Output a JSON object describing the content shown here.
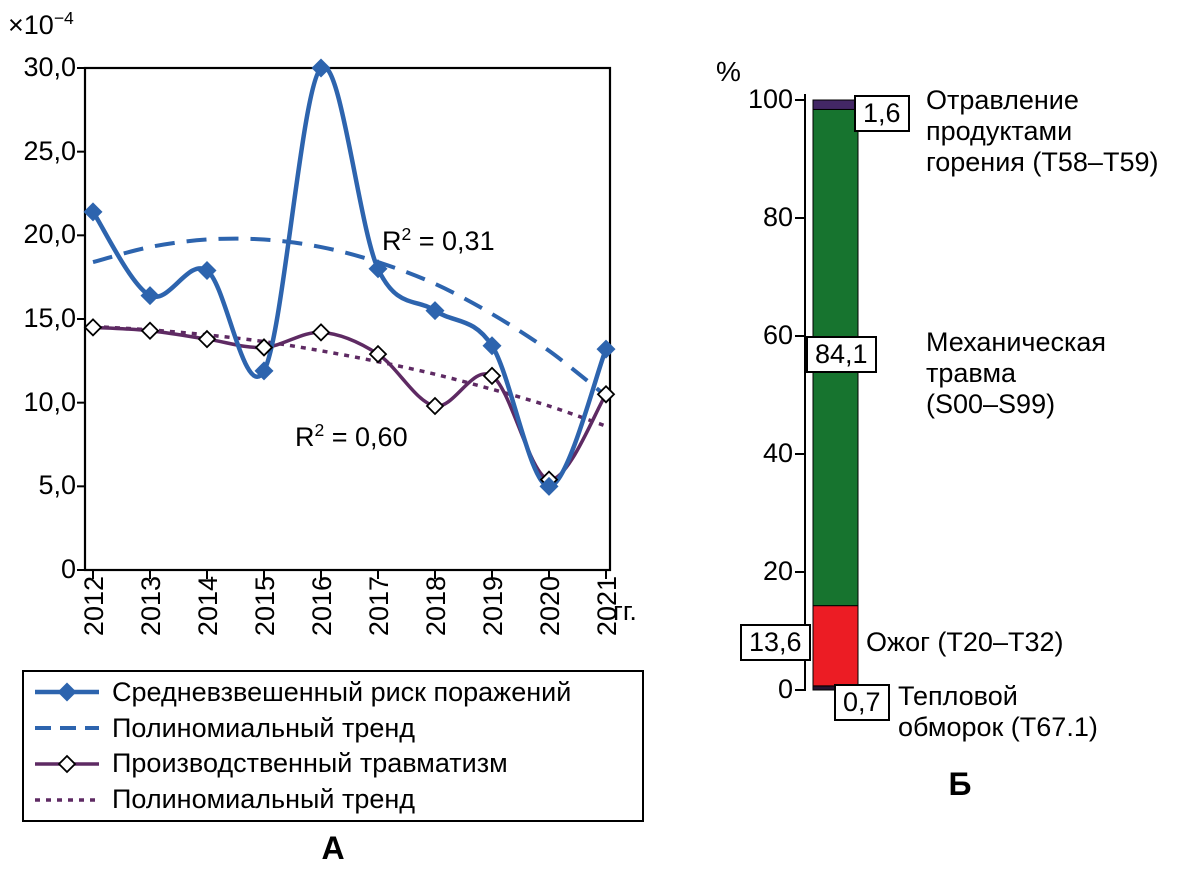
{
  "figure": {
    "panel_a_label": "А",
    "panel_b_label": "Б"
  },
  "chart_data": [
    {
      "id": "panel-a",
      "type": "line",
      "xlabel": "гг.",
      "y_scale": {
        "base": "×10",
        "sup": "−4"
      },
      "ylim": [
        0,
        30
      ],
      "yticks": [
        "0",
        "5,0",
        "10,0",
        "15,0",
        "20,0",
        "25,0",
        "30,0"
      ],
      "ytick_values": [
        0,
        5,
        10,
        15,
        20,
        25,
        30
      ],
      "x_categories": [
        "2012",
        "2013",
        "2014",
        "2015",
        "2016",
        "2017",
        "2018",
        "2019",
        "2020",
        "2021"
      ],
      "grid": false,
      "legend_position": "bottom",
      "series": [
        {
          "name": "Средневзвешенный риск поражений",
          "type": "line-markers",
          "marker": "diamond-filled",
          "color": "#2d64ae",
          "values": [
            21.4,
            16.4,
            17.9,
            11.9,
            30.0,
            18.0,
            15.5,
            13.4,
            5.0,
            13.2
          ]
        },
        {
          "name": "Полиномиальный тренд",
          "type": "trend-dashed",
          "color": "#2d64ae",
          "values": [
            18.4,
            19.3,
            19.75,
            19.75,
            19.3,
            18.4,
            17.1,
            15.3,
            13.1,
            10.4
          ],
          "r2": {
            "base": "R",
            "sup": "2",
            "rest": " = 0,31"
          }
        },
        {
          "name": "Производственный травматизм",
          "type": "line-markers",
          "marker": "diamond-open",
          "color": "#5e2a63",
          "values": [
            14.5,
            14.3,
            13.8,
            13.3,
            14.2,
            12.9,
            9.8,
            11.6,
            5.4,
            10.5
          ]
        },
        {
          "name": "Полиномиальный тренд",
          "type": "trend-dotted",
          "color": "#5e2a63",
          "values": [
            14.55,
            14.35,
            14.05,
            13.65,
            13.1,
            12.45,
            11.7,
            10.8,
            9.8,
            8.6
          ],
          "r2": {
            "base": "R",
            "sup": "2",
            "rest": " = 0,60"
          }
        }
      ]
    },
    {
      "id": "panel-b",
      "type": "stacked-bar",
      "ylabel": "%",
      "ylim": [
        0,
        100
      ],
      "yticks": [
        "0",
        "20",
        "40",
        "60",
        "80",
        "100"
      ],
      "ytick_values": [
        0,
        20,
        40,
        60,
        80,
        100
      ],
      "segments": [
        {
          "label_lines": [
            "Тепловой",
            "обморок (Т67.1)"
          ],
          "value": 0.7,
          "value_label": "0,7",
          "color": "#241430"
        },
        {
          "label_lines": [
            "Ожог (Т20–Т32)"
          ],
          "value": 13.6,
          "value_label": "13,6",
          "color": "#ec1c24"
        },
        {
          "label_lines": [
            "Механическая",
            "травма",
            "(S00–S99)"
          ],
          "value": 84.1,
          "value_label": "84,1",
          "color": "#17742f"
        },
        {
          "label_lines": [
            "Отравление",
            "продуктами",
            "горения (Т58–Т59)"
          ],
          "value": 1.6,
          "value_label": "1,6",
          "color": "#432765"
        }
      ]
    }
  ],
  "legend": {
    "items": [
      {
        "label": "Средневзвешенный риск поражений"
      },
      {
        "label": "Полиномиальный тренд"
      },
      {
        "label": "Производственный травматизм"
      },
      {
        "label": "Полиномиальный тренд"
      }
    ]
  }
}
